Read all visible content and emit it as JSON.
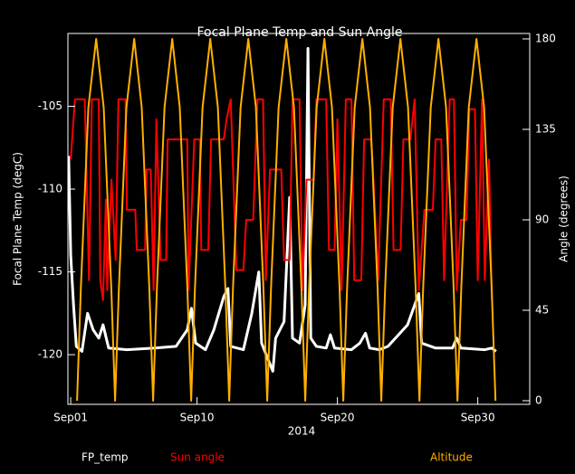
{
  "chart_data": {
    "type": "line",
    "title": "Focal Plane Temp and Sun Angle",
    "xlabel": "2014",
    "ylabel": "Focal Plane Temp (degC)",
    "y2label": "Angle (degrees)",
    "xlim": [
      0.8,
      33.7
    ],
    "xticks": [
      {
        "value": 1,
        "label": "Sep01"
      },
      {
        "value": 10,
        "label": "Sep10"
      },
      {
        "value": 20,
        "label": "Sep20"
      },
      {
        "value": 30,
        "label": "Sep30"
      }
    ],
    "ylim": [
      -123,
      -100.6
    ],
    "yticks": [
      -105,
      -110,
      -115,
      -120
    ],
    "y2lim": [
      -1.8,
      182.7
    ],
    "y2ticks": [
      0,
      45,
      90,
      135,
      180
    ],
    "series": [
      {
        "name": "FP_temp",
        "color": "#ffffff",
        "x": [
          0.85,
          1.0,
          1.2,
          1.4,
          1.8,
          2.2,
          2.6,
          3.0,
          3.3,
          3.7,
          5,
          7,
          8.5,
          9.3,
          9.6,
          9.9,
          10.6,
          11.2,
          11.9,
          12.2,
          12.4,
          13.3,
          13.9,
          14.4,
          14.6,
          15.4,
          15.6,
          16.2,
          16.6,
          16.8,
          17.3,
          17.7,
          17.9,
          18.1,
          18.5,
          19.2,
          19.5,
          19.8,
          21.0,
          21.6,
          22.0,
          22.3,
          23.0,
          23.6,
          25.0,
          25.5,
          25.8,
          26.0,
          27.0,
          28.2,
          28.5,
          28.8,
          30.5,
          31.0,
          31.3
        ],
        "values": [
          -108,
          -114,
          -117,
          -119.5,
          -119.8,
          -117.5,
          -118.5,
          -119,
          -118.2,
          -119.6,
          -119.7,
          -119.6,
          -119.5,
          -118.5,
          -117.2,
          -119.3,
          -119.7,
          -118.5,
          -116.5,
          -116,
          -119.5,
          -119.7,
          -117.5,
          -115,
          -119.3,
          -121,
          -119,
          -118,
          -110.5,
          -119,
          -119.3,
          -117,
          -101.5,
          -119,
          -119.5,
          -119.6,
          -118.8,
          -119.6,
          -119.7,
          -119.3,
          -118.7,
          -119.6,
          -119.7,
          -119.5,
          -118.2,
          -117.0,
          -116.3,
          -119.3,
          -119.6,
          -119.6,
          -119.0,
          -119.6,
          -119.7,
          -119.6,
          -119.8
        ]
      },
      {
        "name": "Sun angle",
        "color": "#ff0000",
        "axis": "y2",
        "x": [
          1.0,
          1.3,
          2.0,
          2.3,
          2.5,
          3.0,
          3.1,
          3.3,
          3.5,
          3.6,
          3.9,
          4.2,
          4.4,
          4.9,
          5.0,
          5.6,
          5.7,
          6.3,
          6.4,
          6.7,
          6.9,
          7.1,
          7.4,
          7.8,
          7.9,
          9.3,
          9.4,
          9.8,
          10.2,
          10.3,
          10.8,
          11.0,
          11.9,
          12.1,
          12.4,
          12.8,
          13.3,
          13.5,
          14.0,
          14.3,
          14.7,
          14.9,
          15.2,
          16.0,
          16.2,
          16.6,
          16.8,
          17.3,
          17.5,
          17.8,
          18.3,
          18.5,
          19.2,
          19.4,
          19.8,
          20.0,
          20.3,
          20.6,
          21.0,
          21.2,
          21.7,
          21.9,
          22.4,
          22.5,
          22.9,
          23.3,
          23.8,
          24.0,
          24.5,
          24.7,
          25.2,
          25.5,
          25.8,
          26.2,
          26.8,
          27.0,
          27.4,
          27.6,
          28.0,
          28.3,
          28.5,
          28.8,
          29.2,
          29.4,
          29.8,
          30.0,
          30.3,
          30.5,
          30.8,
          31.0
        ],
        "values": [
          120,
          150,
          150,
          60,
          150,
          150,
          60,
          50,
          100,
          55,
          110,
          70,
          150,
          150,
          95,
          95,
          75,
          75,
          115,
          115,
          55,
          140,
          70,
          70,
          130,
          130,
          55,
          130,
          130,
          75,
          75,
          130,
          130,
          140,
          150,
          65,
          65,
          90,
          90,
          150,
          150,
          60,
          115,
          115,
          70,
          70,
          150,
          150,
          55,
          110,
          110,
          150,
          150,
          75,
          75,
          140,
          55,
          150,
          150,
          60,
          60,
          130,
          130,
          120,
          60,
          150,
          150,
          75,
          75,
          130,
          130,
          150,
          55,
          95,
          95,
          130,
          130,
          60,
          150,
          150,
          55,
          90,
          90,
          145,
          145,
          60,
          150,
          60,
          120,
          50
        ]
      },
      {
        "name": "Altitude",
        "color": "#ffb000",
        "axis": "y2",
        "x": [
          1.45,
          1.72,
          2.26,
          2.81,
          3.35,
          3.89,
          4.16,
          4.43,
          4.97,
          5.52,
          6.06,
          6.6,
          6.87,
          7.14,
          7.68,
          8.23,
          8.77,
          9.31,
          9.58,
          9.85,
          10.39,
          10.94,
          11.48,
          12.02,
          12.29,
          12.56,
          13.1,
          13.65,
          14.19,
          14.73,
          15.0,
          15.27,
          15.81,
          16.36,
          16.9,
          17.44,
          17.71,
          17.98,
          18.52,
          19.07,
          19.61,
          20.15,
          20.42,
          20.69,
          21.23,
          21.78,
          22.32,
          22.86,
          23.13,
          23.4,
          23.94,
          24.49,
          25.03,
          25.57,
          25.84,
          26.11,
          26.65,
          27.2,
          27.74,
          28.28,
          28.55,
          28.82,
          29.36,
          29.91,
          30.45,
          30.99,
          31.26
        ],
        "values": [
          0,
          56,
          146,
          180,
          146,
          56,
          0,
          56,
          146,
          180,
          146,
          56,
          0,
          56,
          146,
          180,
          146,
          56,
          0,
          56,
          146,
          180,
          146,
          56,
          0,
          56,
          146,
          180,
          146,
          56,
          0,
          56,
          146,
          180,
          146,
          56,
          0,
          56,
          146,
          180,
          146,
          56,
          0,
          56,
          146,
          180,
          146,
          56,
          0,
          56,
          146,
          180,
          146,
          56,
          0,
          56,
          146,
          180,
          146,
          56,
          0,
          56,
          146,
          180,
          146,
          56,
          0
        ]
      }
    ]
  }
}
